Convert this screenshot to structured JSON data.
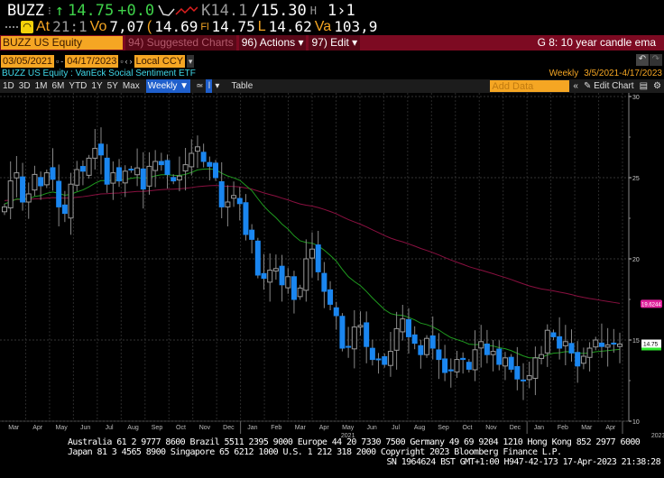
{
  "quote": {
    "ticker": "BUZZ",
    "last": "14.75",
    "change": "+0.0",
    "k": "K14.1",
    "range_hi": "/15.30",
    "h": "H",
    "pages": "1›1",
    "at_label": "At",
    "time": "21:1",
    "vol_label": "Vo",
    "volume": "7,07",
    "open_paren": "(",
    "open": "14.69",
    "fl_label": "Fl",
    "high": "14.75",
    "low_label": "L",
    "low": "14.62",
    "val_label": "Va",
    "value": "103,9"
  },
  "command": {
    "security": "BUZZ US Equity",
    "suggested": "94) Suggested Charts",
    "actions": "96) Actions ▾",
    "edit": "97) Edit ▾",
    "chart_name": "G 8: 10 year candle ema"
  },
  "range": {
    "start": "03/05/2021",
    "end": "04/17/2023",
    "currency": "Local CCY"
  },
  "title": "BUZZ US Equity : VanEck Social Sentiment ETF",
  "period_label": "Weekly",
  "period_range": "3/5/2021-4/17/2023",
  "toolbar": {
    "ranges": [
      "1D",
      "3D",
      "1M",
      "6M",
      "YTD",
      "1Y",
      "5Y",
      "Max"
    ],
    "frequency": "Weekly ▼",
    "table": "Table",
    "add_data_placeholder": "Add Data",
    "edit_chart": "Edit Chart"
  },
  "colors": {
    "up": "#9a9a9a",
    "down": "#1a86f0",
    "ema_short": "#1f9a1f",
    "ema_long": "#8a1040",
    "accent": "#f5a623"
  },
  "chart_data": {
    "type": "candlestick",
    "ylim": [
      10,
      30
    ],
    "yticks": [
      30,
      25,
      20,
      15,
      10
    ],
    "months": [
      "Mar",
      "Apr",
      "May",
      "Jun",
      "Jul",
      "Aug",
      "Sep",
      "Oct",
      "Nov",
      "Dec",
      "Jan",
      "Feb",
      "Mar",
      "Apr",
      "May",
      "Jun",
      "Jul",
      "Aug",
      "Sep",
      "Oct",
      "Nov",
      "Dec",
      "Jan",
      "Feb",
      "Mar",
      "Apr"
    ],
    "years": [
      "2021",
      "2022",
      "2023"
    ],
    "closes": [
      23.2,
      24.8,
      25.3,
      23.5,
      24.0,
      25.2,
      24.5,
      25.3,
      24.9,
      23.2,
      22.8,
      24.6,
      25.5,
      25.4,
      26.2,
      26.8,
      26.4,
      24.6,
      25.3,
      24.8,
      25.4,
      25.5,
      25.6,
      24.3,
      25.7,
      26.0,
      25.8,
      25.2,
      24.8,
      25.1,
      25.8,
      26.5,
      26.9,
      26.0,
      25.7,
      25.0,
      23.2,
      23.5,
      23.9,
      23.4,
      21.5,
      21.2,
      19.0,
      18.8,
      19.3,
      19.4,
      18.4,
      18.9,
      17.5,
      18.2,
      20.0,
      20.6,
      19.2,
      18.0,
      17.2,
      16.5,
      14.5,
      14.6,
      15.8,
      15.9,
      14.6,
      13.8,
      13.8,
      13.5,
      14.3,
      15.7,
      16.3,
      15.2,
      14.8,
      14.1,
      15.1,
      14.5,
      13.8,
      13.0,
      13.1,
      13.8,
      13.8,
      13.2,
      14.4,
      14.9,
      14.1,
      14.3,
      13.5,
      13.9,
      13.2,
      12.6,
      12.5,
      12.8,
      13.9,
      14.1,
      15.6,
      15.2,
      14.5,
      14.9,
      14.2,
      13.4,
      14.0,
      14.5,
      15.0,
      14.6,
      14.7,
      14.75,
      14.75
    ],
    "last_label": "14.75",
    "ema_long_label": "19.6244"
  },
  "footer": {
    "line1": "Australia 61 2 9777 8600 Brazil 5511 2395 9000 Europe 44 20 7330 7500 Germany 49 69 9204 1210 Hong Kong 852 2977 6000",
    "line2": "Japan 81 3 4565 8900       Singapore 65 6212 1000       U.S. 1 212 318 2000          Copyright 2023 Bloomberg Finance L.P.",
    "line3": "SN 1964624 BST  GMT+1:00 H947-42-173 17-Apr-2023 21:38:28"
  }
}
